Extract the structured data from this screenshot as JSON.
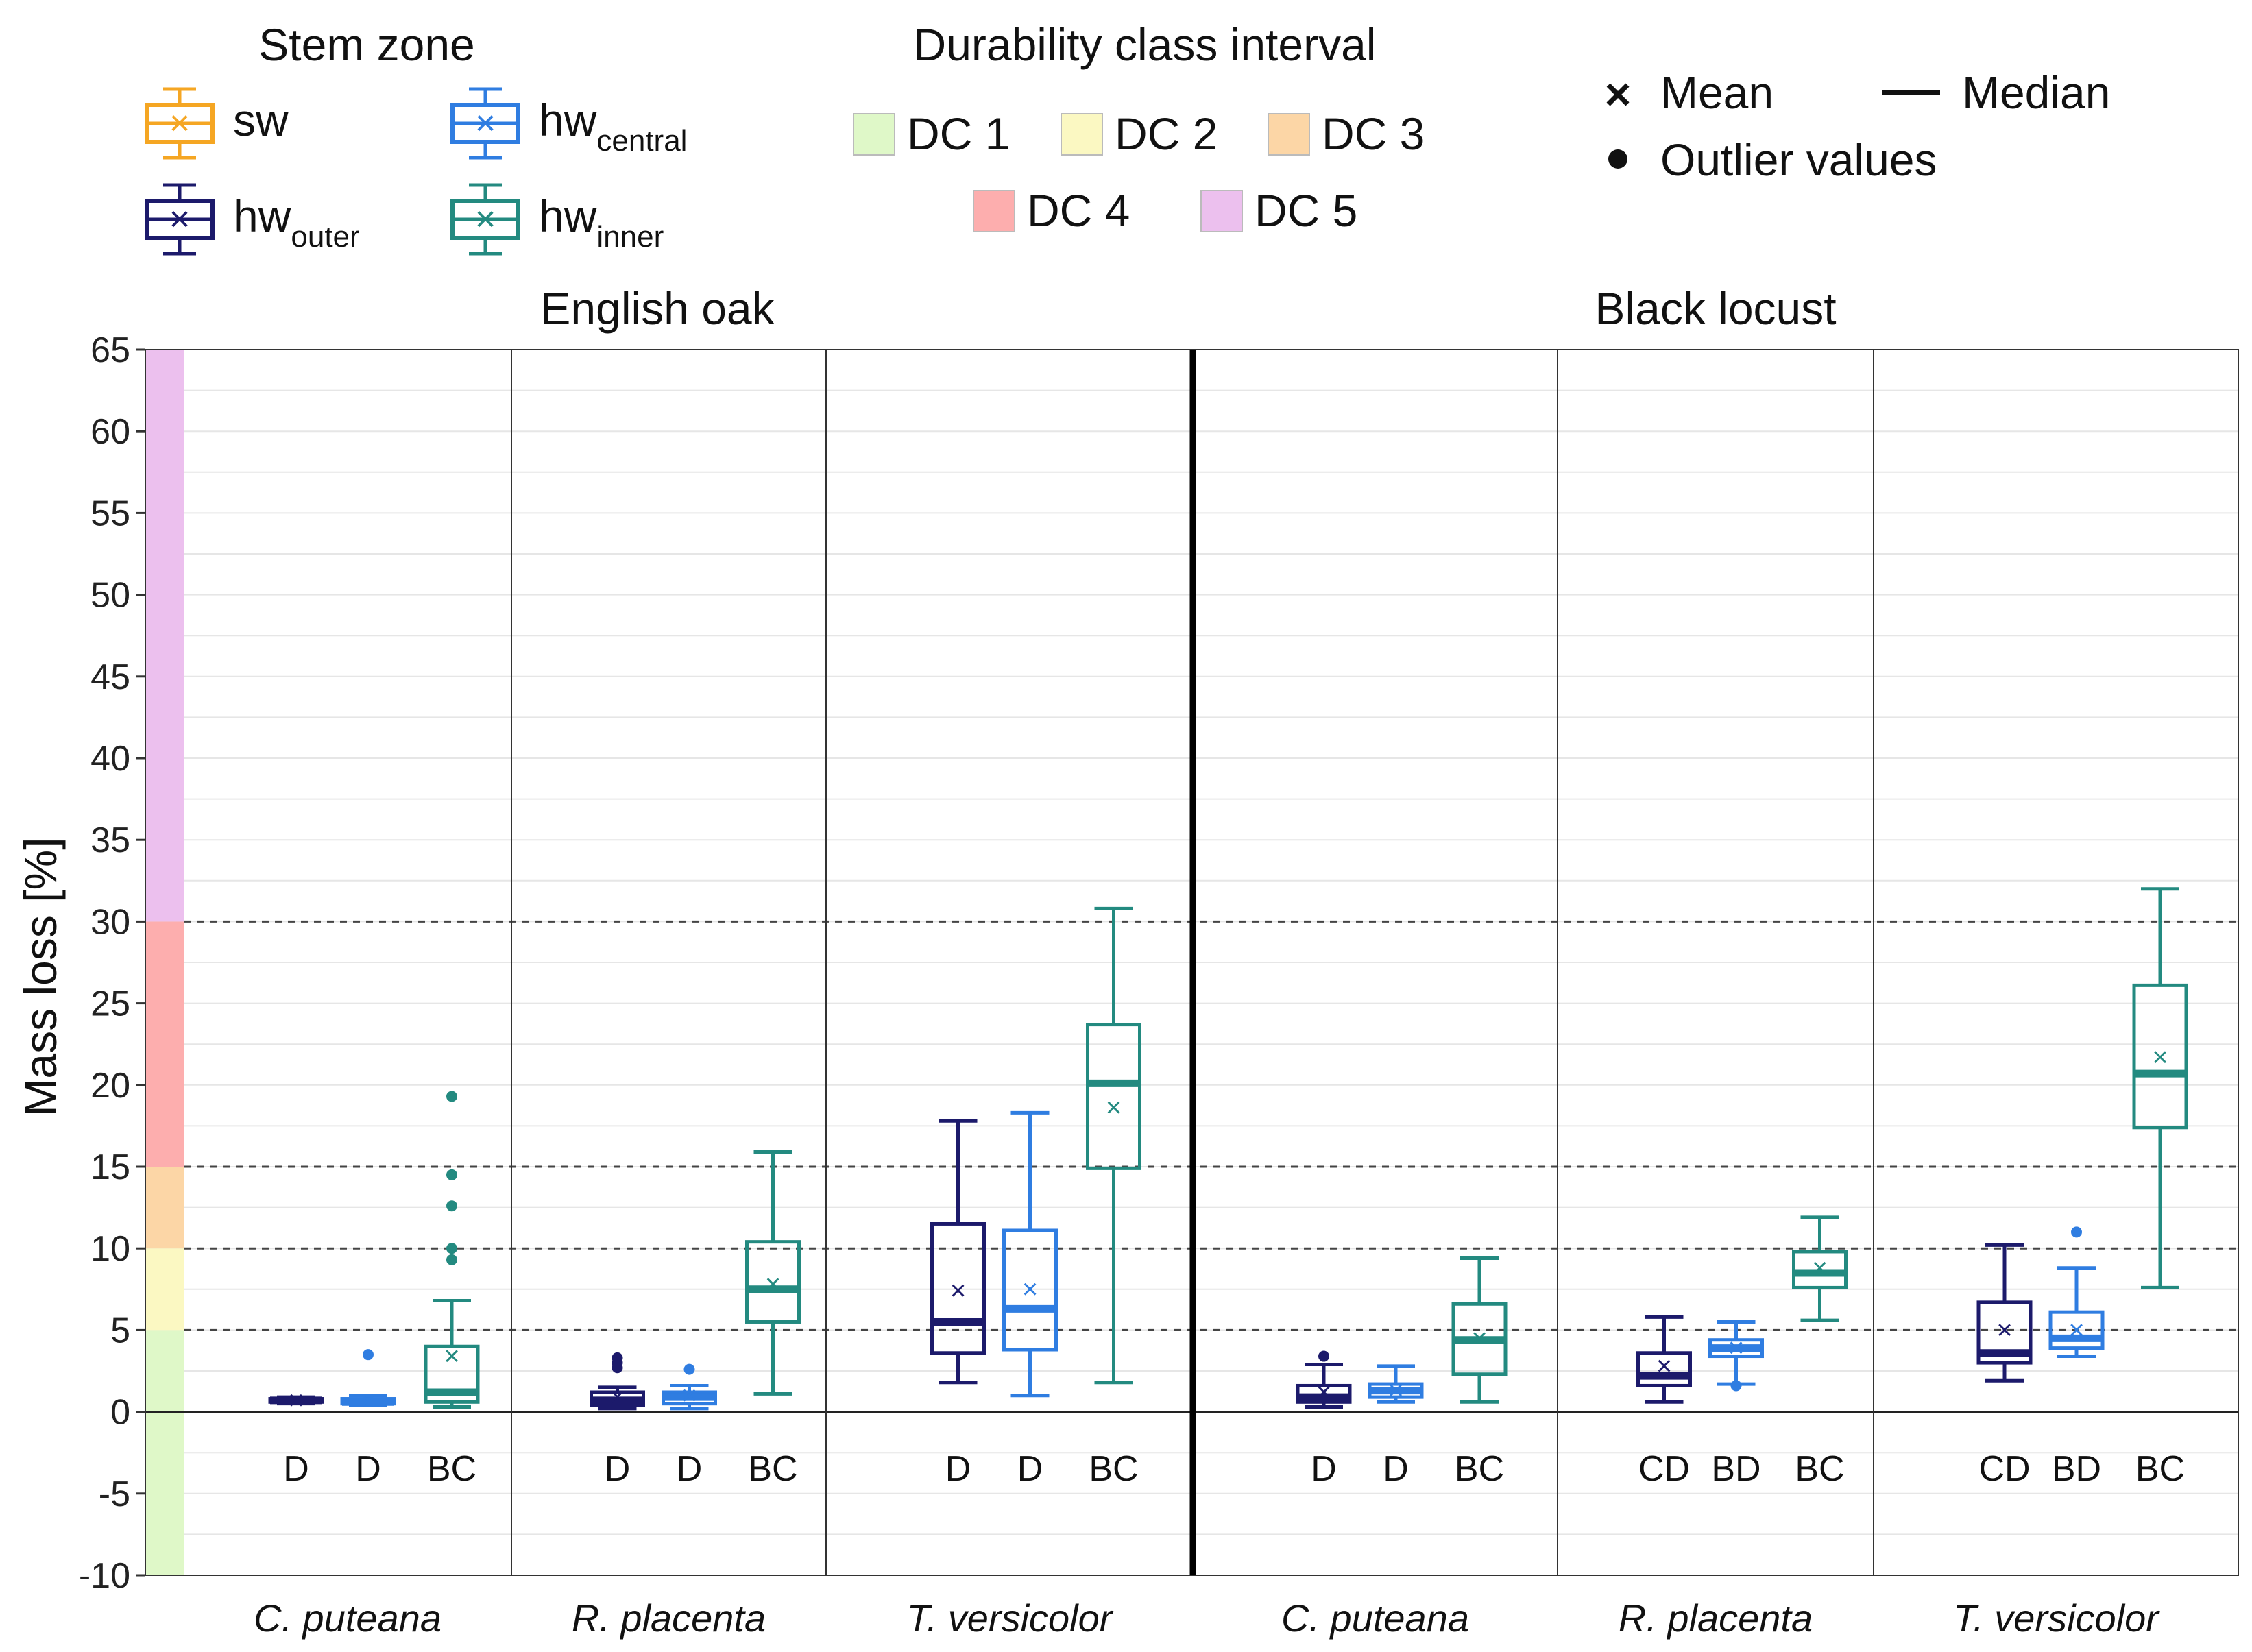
{
  "chart_data": {
    "type": "boxplot",
    "ylabel": "Mass loss [%]",
    "ylim": [
      -10,
      65
    ],
    "yticks": [
      -10,
      -5,
      0,
      5,
      10,
      15,
      20,
      25,
      30,
      35,
      40,
      45,
      50,
      55,
      60,
      65
    ],
    "dc_thresholds": [
      5,
      10,
      15,
      30
    ],
    "legend": {
      "stem_zone_title": "Stem zone",
      "durability_title": "Durability class interval",
      "zones": [
        {
          "key": "sw",
          "label": "sw",
          "sub": "",
          "color": "#f5a623"
        },
        {
          "key": "hwc",
          "label": "hw",
          "sub": "central",
          "color": "#2f7de1"
        },
        {
          "key": "hwo",
          "label": "hw",
          "sub": "outer",
          "color": "#1c1a6b"
        },
        {
          "key": "hwi",
          "label": "hw",
          "sub": "inner",
          "color": "#238a80"
        }
      ],
      "dcs": [
        {
          "label": "DC 1",
          "color": "#dff8c8",
          "range": [
            -10,
            5
          ]
        },
        {
          "label": "DC 2",
          "color": "#fbf8c2",
          "range": [
            5,
            10
          ]
        },
        {
          "label": "DC 3",
          "color": "#fcd6a6",
          "range": [
            10,
            15
          ]
        },
        {
          "label": "DC 4",
          "color": "#fdaeae",
          "range": [
            15,
            30
          ]
        },
        {
          "label": "DC 5",
          "color": "#ecc0ee",
          "range": [
            30,
            65
          ]
        }
      ],
      "mean_label": "Mean",
      "median_label": "Median",
      "outlier_label": "Outlier values",
      "mean_symbol": "×"
    },
    "panels": [
      {
        "title": "English oak",
        "groups": [
          {
            "species": "C. puteana",
            "boxes": [
              {
                "zone": "hwo",
                "min": 0.5,
                "q1": 0.6,
                "median": 0.7,
                "q3": 0.8,
                "max": 0.9,
                "mean": 0.7,
                "outliers": [],
                "letter": "D"
              },
              {
                "zone": "hwc",
                "min": 0.4,
                "q1": 0.5,
                "median": 0.6,
                "q3": 0.8,
                "max": 1.0,
                "mean": 0.7,
                "outliers": [
                  3.5
                ],
                "letter": "D"
              },
              {
                "zone": "hwi",
                "min": 0.3,
                "q1": 0.6,
                "median": 1.2,
                "q3": 4.0,
                "max": 6.8,
                "mean": 3.4,
                "outliers": [
                  9.3,
                  10.0,
                  12.6,
                  14.5,
                  19.3
                ],
                "letter": "BC"
              }
            ]
          },
          {
            "species": "R. placenta",
            "boxes": [
              {
                "zone": "hwo",
                "min": 0.2,
                "q1": 0.4,
                "median": 0.7,
                "q3": 1.2,
                "max": 1.5,
                "mean": 0.9,
                "outliers": [
                  2.7,
                  3.0,
                  3.3
                ],
                "letter": "D"
              },
              {
                "zone": "hwc",
                "min": 0.2,
                "q1": 0.5,
                "median": 0.9,
                "q3": 1.2,
                "max": 1.6,
                "mean": 1.0,
                "outliers": [
                  2.6
                ],
                "letter": "D"
              },
              {
                "zone": "hwi",
                "min": 1.1,
                "q1": 5.5,
                "median": 7.5,
                "q3": 10.4,
                "max": 15.9,
                "mean": 7.8,
                "outliers": [],
                "letter": "BC"
              }
            ]
          },
          {
            "species": "T. versicolor",
            "boxes": [
              {
                "zone": "hwo",
                "min": 1.8,
                "q1": 3.6,
                "median": 5.5,
                "q3": 11.5,
                "max": 17.8,
                "mean": 7.4,
                "outliers": [],
                "letter": "D"
              },
              {
                "zone": "hwc",
                "min": 1.0,
                "q1": 3.8,
                "median": 6.3,
                "q3": 11.1,
                "max": 18.3,
                "mean": 7.5,
                "outliers": [],
                "letter": "D"
              },
              {
                "zone": "hwi",
                "min": 1.8,
                "q1": 14.9,
                "median": 20.1,
                "q3": 23.7,
                "max": 30.8,
                "mean": 18.6,
                "outliers": [],
                "letter": "BC"
              }
            ]
          }
        ]
      },
      {
        "title": "Black locust",
        "groups": [
          {
            "species": "C. puteana",
            "boxes": [
              {
                "zone": "hwo",
                "min": 0.3,
                "q1": 0.6,
                "median": 0.9,
                "q3": 1.6,
                "max": 2.9,
                "mean": 1.2,
                "outliers": [
                  3.4
                ],
                "letter": "D"
              },
              {
                "zone": "hwc",
                "min": 0.6,
                "q1": 0.9,
                "median": 1.3,
                "q3": 1.7,
                "max": 2.8,
                "mean": 1.3,
                "outliers": [],
                "letter": "D"
              },
              {
                "zone": "hwi",
                "min": 0.6,
                "q1": 2.3,
                "median": 4.4,
                "q3": 6.6,
                "max": 9.4,
                "mean": 4.5,
                "outliers": [],
                "letter": "BC"
              }
            ]
          },
          {
            "species": "R. placenta",
            "boxes": [
              {
                "zone": "hwo",
                "min": 0.6,
                "q1": 1.6,
                "median": 2.2,
                "q3": 3.6,
                "max": 5.8,
                "mean": 2.8,
                "outliers": [],
                "letter": "CD"
              },
              {
                "zone": "hwc",
                "min": 1.7,
                "q1": 3.4,
                "median": 3.9,
                "q3": 4.4,
                "max": 5.5,
                "mean": 3.9,
                "outliers": [
                  1.6
                ],
                "letter": "BD"
              },
              {
                "zone": "hwi",
                "min": 5.6,
                "q1": 7.6,
                "median": 8.5,
                "q3": 9.8,
                "max": 11.9,
                "mean": 8.8,
                "outliers": [],
                "letter": "BC"
              }
            ]
          },
          {
            "species": "T. versicolor",
            "boxes": [
              {
                "zone": "hwo",
                "min": 1.9,
                "q1": 3.0,
                "median": 3.6,
                "q3": 6.7,
                "max": 10.2,
                "mean": 5.0,
                "outliers": [],
                "letter": "CD"
              },
              {
                "zone": "hwc",
                "min": 3.4,
                "q1": 3.9,
                "median": 4.5,
                "q3": 6.1,
                "max": 8.8,
                "mean": 5.0,
                "outliers": [
                  11.0
                ],
                "letter": "BD"
              },
              {
                "zone": "hwi",
                "min": 7.6,
                "q1": 17.4,
                "median": 20.7,
                "q3": 26.1,
                "max": 32.0,
                "mean": 21.7,
                "outliers": [],
                "letter": "BC"
              }
            ]
          }
        ]
      }
    ]
  }
}
